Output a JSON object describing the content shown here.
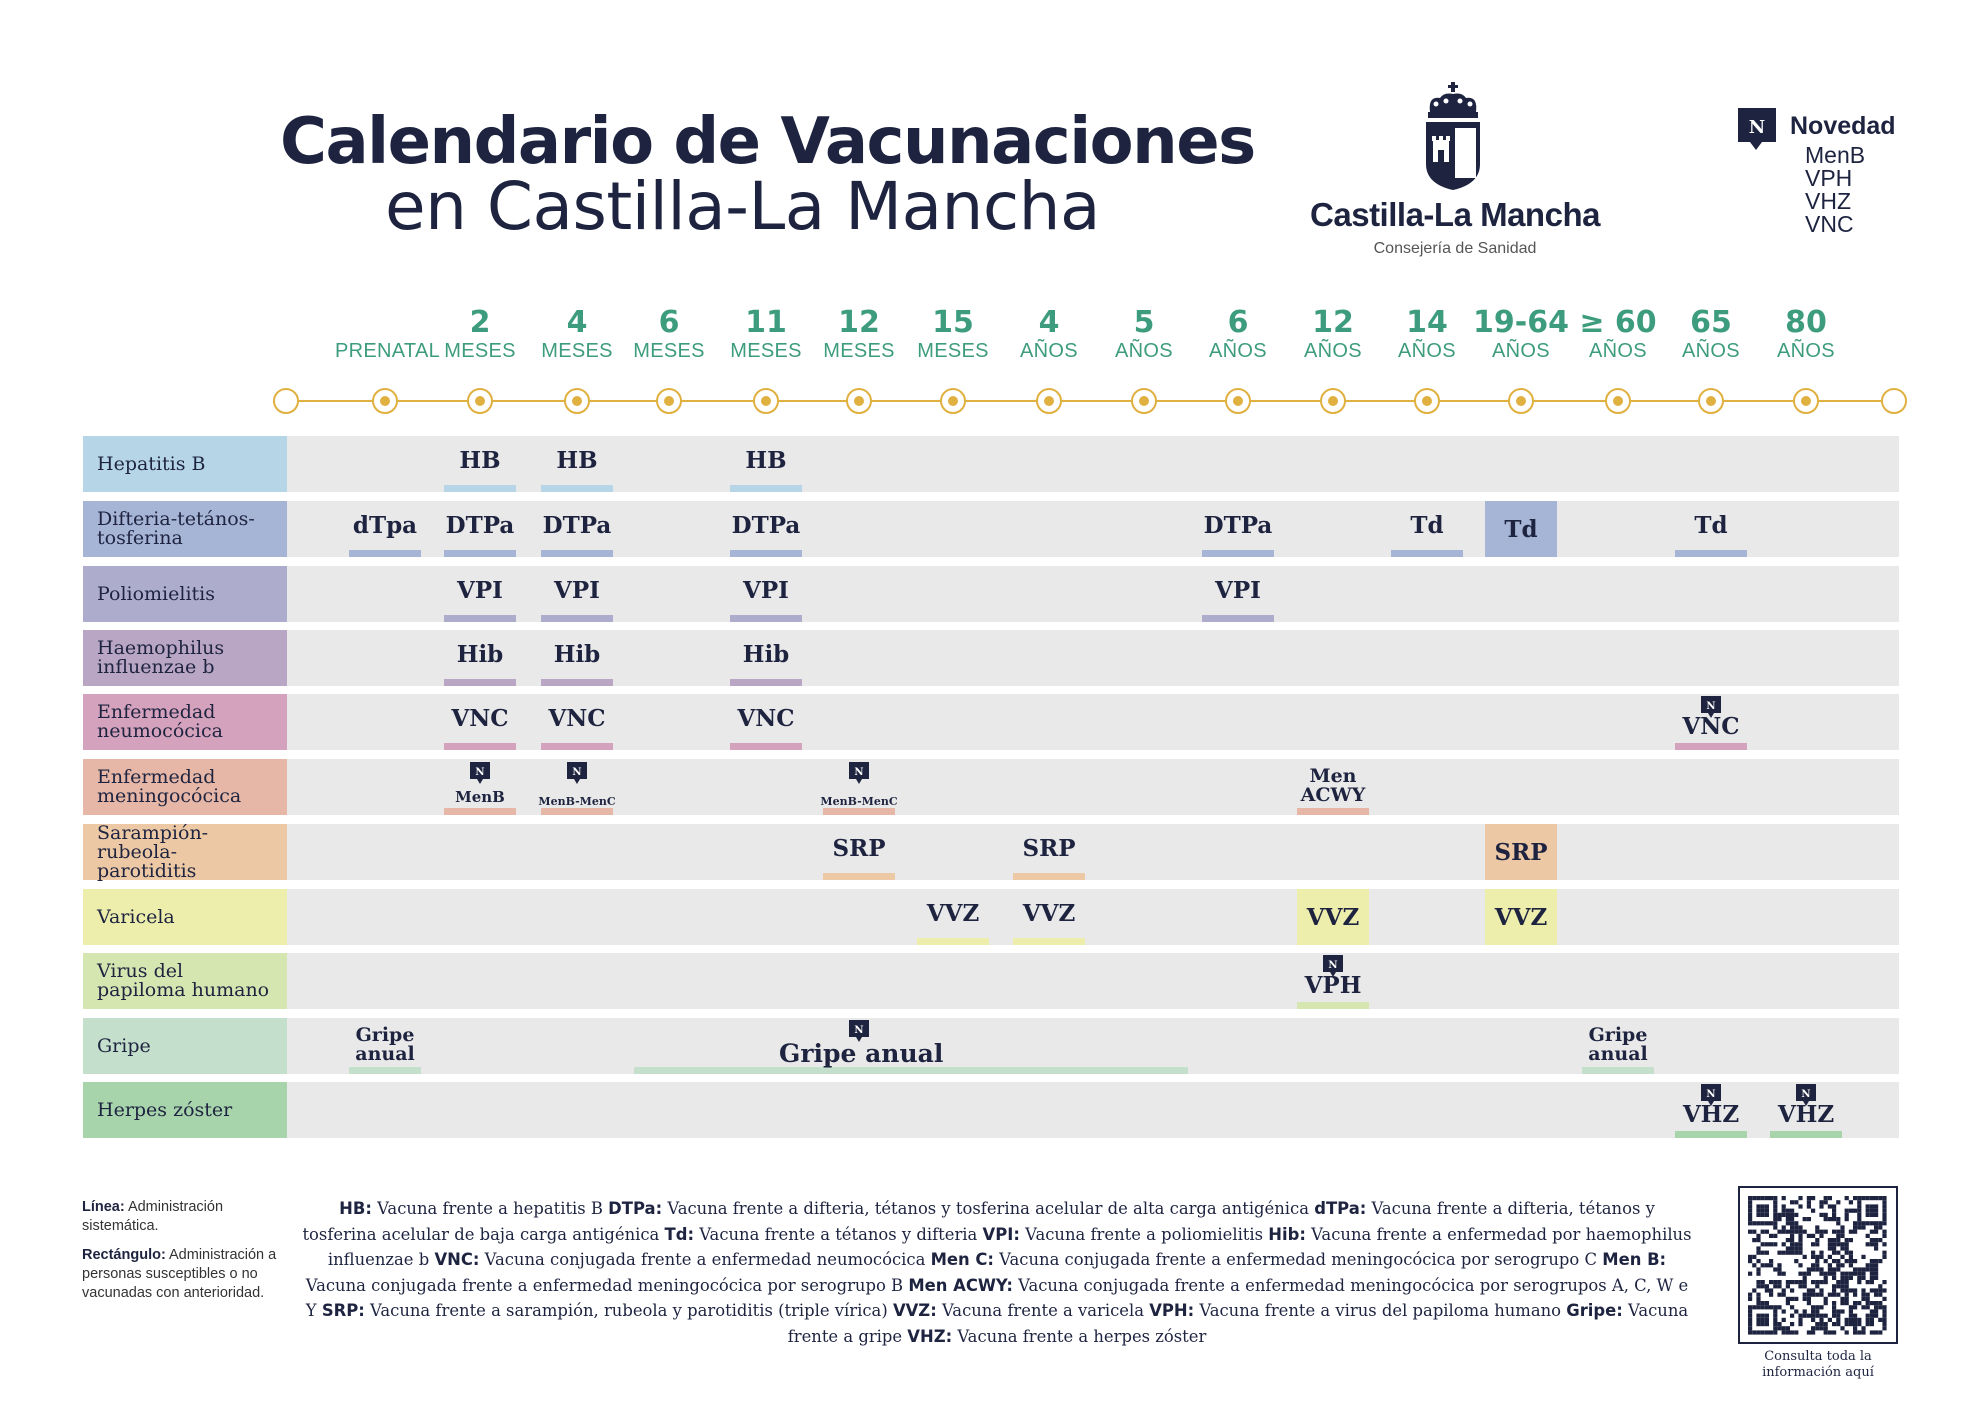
{
  "header": {
    "title_line1": "Calendario de Vacunaciones",
    "title_line2": "en Castilla-La Mancha",
    "brand_name": "Castilla-La Mancha",
    "brand_dept": "Consejería de Sanidad",
    "novedad": {
      "badge_letter": "N",
      "title": "Novedad",
      "items": [
        "MenB",
        "VPH",
        "VHZ",
        "VNC"
      ]
    }
  },
  "timeline": {
    "ages": [
      {
        "num": "",
        "unit": "PRENATAL"
      },
      {
        "num": "2",
        "unit": "MESES"
      },
      {
        "num": "4",
        "unit": "MESES"
      },
      {
        "num": "6",
        "unit": "MESES"
      },
      {
        "num": "11",
        "unit": "MESES"
      },
      {
        "num": "12",
        "unit": "MESES"
      },
      {
        "num": "15",
        "unit": "MESES"
      },
      {
        "num": "4",
        "unit": "AÑOS"
      },
      {
        "num": "5",
        "unit": "AÑOS"
      },
      {
        "num": "6",
        "unit": "AÑOS"
      },
      {
        "num": "12",
        "unit": "AÑOS"
      },
      {
        "num": "14",
        "unit": "AÑOS"
      },
      {
        "num": "19-64",
        "unit": "AÑOS"
      },
      {
        "num": "≥ 60",
        "unit": "AÑOS"
      },
      {
        "num": "65",
        "unit": "AÑOS"
      },
      {
        "num": "80",
        "unit": "AÑOS"
      }
    ]
  },
  "rows": [
    {
      "label": "Hepatitis B",
      "color": "#b6d6e8",
      "entries": [
        {
          "col": 1,
          "text": "HB",
          "style": "line"
        },
        {
          "col": 2,
          "text": "HB",
          "style": "line"
        },
        {
          "col": 4,
          "text": "HB",
          "style": "line"
        }
      ]
    },
    {
      "label": "Difteria-tetános-tosferina",
      "color": "#a6b4d6",
      "entries": [
        {
          "col": 0,
          "text": "dTpa",
          "style": "line"
        },
        {
          "col": 1,
          "text": "DTPa",
          "style": "line"
        },
        {
          "col": 2,
          "text": "DTPa",
          "style": "line"
        },
        {
          "col": 4,
          "text": "DTPa",
          "style": "line"
        },
        {
          "col": 9,
          "text": "DTPa",
          "style": "line"
        },
        {
          "col": 11,
          "text": "Td",
          "style": "line"
        },
        {
          "col": 12,
          "text": "Td",
          "style": "rect"
        },
        {
          "col": 14,
          "text": "Td",
          "style": "line"
        }
      ]
    },
    {
      "label": "Poliomielitis",
      "color": "#aeaccc",
      "entries": [
        {
          "col": 1,
          "text": "VPI",
          "style": "line"
        },
        {
          "col": 2,
          "text": "VPI",
          "style": "line"
        },
        {
          "col": 4,
          "text": "VPI",
          "style": "line"
        },
        {
          "col": 9,
          "text": "VPI",
          "style": "line"
        }
      ]
    },
    {
      "label": "Haemophilus influenzae b",
      "color": "#b8a6c4",
      "entries": [
        {
          "col": 1,
          "text": "Hib",
          "style": "line"
        },
        {
          "col": 2,
          "text": "Hib",
          "style": "line"
        },
        {
          "col": 4,
          "text": "Hib",
          "style": "line"
        }
      ]
    },
    {
      "label": "Enfermedad neumocócica",
      "color": "#d4a2bc",
      "entries": [
        {
          "col": 1,
          "text": "VNC",
          "style": "line"
        },
        {
          "col": 2,
          "text": "VNC",
          "style": "line"
        },
        {
          "col": 4,
          "text": "VNC",
          "style": "line"
        },
        {
          "col": 14,
          "text": "VNC",
          "style": "line",
          "badge": true
        }
      ]
    },
    {
      "label": "Enfermedad meningocócica",
      "color": "#e6b6a6",
      "entries": [
        {
          "col": 1,
          "text": "MenB",
          "style": "line",
          "badge": true,
          "size": "small"
        },
        {
          "col": 2,
          "text": "MenB-MenC",
          "style": "line",
          "badge": true,
          "size": "tiny"
        },
        {
          "col": 5,
          "text": "MenB-MenC",
          "style": "line",
          "badge": true,
          "size": "tiny"
        },
        {
          "col": 10,
          "text": "Men ACWY",
          "style": "line",
          "size": "twoline"
        }
      ]
    },
    {
      "label": "Sarampión-rubeola-parotiditis",
      "color": "#ecc8a4",
      "entries": [
        {
          "col": 5,
          "text": "SRP",
          "style": "line"
        },
        {
          "col": 7,
          "text": "SRP",
          "style": "line"
        },
        {
          "col": 12,
          "text": "SRP",
          "style": "rect"
        }
      ]
    },
    {
      "label": "Varicela",
      "color": "#eeeeac",
      "entries": [
        {
          "col": 6,
          "text": "VVZ",
          "style": "line"
        },
        {
          "col": 7,
          "text": "VVZ",
          "style": "line"
        },
        {
          "col": 10,
          "text": "VVZ",
          "style": "rect"
        },
        {
          "col": 12,
          "text": "VVZ",
          "style": "rect"
        }
      ]
    },
    {
      "label": "Virus del papiloma humano",
      "color": "#d6e6b0",
      "entries": [
        {
          "col": 10,
          "text": "VPH",
          "style": "line",
          "badge": true
        }
      ]
    },
    {
      "label": "Gripe",
      "color": "#c4e0cc",
      "entries": [
        {
          "col": 0,
          "text": "Gripe anual",
          "style": "line",
          "size": "twoline"
        },
        {
          "col": 5,
          "text": "Gripe anual",
          "style": "span",
          "badge": true,
          "span_from": 3,
          "span_to": 9
        },
        {
          "col": 13,
          "text": "Gripe anual",
          "style": "line",
          "size": "twoline"
        }
      ]
    },
    {
      "label": "Herpes zóster",
      "color": "#a8d4ac",
      "entries": [
        {
          "col": 14,
          "text": "VHZ",
          "style": "line",
          "badge": true
        },
        {
          "col": 15,
          "text": "VHZ",
          "style": "line",
          "badge": true
        }
      ]
    }
  ],
  "legend": {
    "line_term": "Línea:",
    "line_desc": "Administración sistemática.",
    "rect_term": "Rectángulo:",
    "rect_desc": "Administración a personas susceptibles o no vacunadas con anterioridad."
  },
  "abbreviations": [
    {
      "term": "HB:",
      "desc": "Vacuna frente a hepatitis B"
    },
    {
      "term": "DTPa:",
      "desc": "Vacuna frente a difteria, tétanos y tosferina acelular de alta carga antigénica"
    },
    {
      "term": "dTPa:",
      "desc": "Vacuna frente a difteria, tétanos y tosferina acelular de baja carga antigénica"
    },
    {
      "term": "Td:",
      "desc": "Vacuna frente a tétanos y difteria"
    },
    {
      "term": "VPI:",
      "desc": "Vacuna frente a poliomielitis"
    },
    {
      "term": "Hib:",
      "desc": "Vacuna frente a enfermedad por haemophilus influenzae b"
    },
    {
      "term": "VNC:",
      "desc": "Vacuna conjugada frente a enfermedad neumocócica"
    },
    {
      "term": "Men C:",
      "desc": "Vacuna conjugada frente a enfermedad meningocócica por serogrupo C"
    },
    {
      "term": "Men B:",
      "desc": "Vacuna conjugada frente a enfermedad meningocócica por serogrupo B"
    },
    {
      "term": "Men ACWY:",
      "desc": "Vacuna conjugada frente a enfermedad meningocócica por serogrupos A, C, W e Y"
    },
    {
      "term": "SRP:",
      "desc": "Vacuna frente a sarampión, rubeola y parotiditis (triple vírica)"
    },
    {
      "term": "VVZ:",
      "desc": "Vacuna frente a varicela"
    },
    {
      "term": "VPH:",
      "desc": "Vacuna frente a virus del papiloma humano"
    },
    {
      "term": "Gripe:",
      "desc": "Vacuna frente a gripe"
    },
    {
      "term": "VHZ:",
      "desc": "Vacuna frente a herpes zóster"
    }
  ],
  "qr": {
    "caption": "Consulta toda la información aquí"
  },
  "colors": {
    "navy": "#1e2440",
    "green": "#3e9c7e",
    "gold": "#e0b040",
    "row_bg": "#e9e9e9"
  }
}
